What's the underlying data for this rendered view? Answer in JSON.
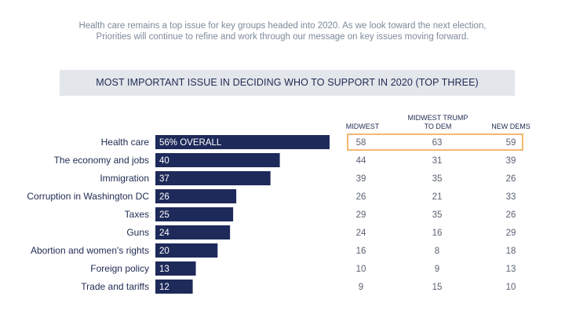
{
  "intro": {
    "line1": "Health care remains a top issue for key groups headed into 2020.  As we look toward the next election,",
    "line2": "Priorities will continue to refine and work through our message on key issues moving forward."
  },
  "colors": {
    "bar": "#1e2a5a",
    "highlight_border": "#f0a044",
    "title_band": "#e3e6eb",
    "text": "#1f2a52",
    "table_text": "#5a6272"
  },
  "chart_data": {
    "type": "bar",
    "orientation": "horizontal",
    "title": "MOST IMPORTANT ISSUE IN DECIDING WHO TO SUPPORT IN 2020 (TOP THREE)",
    "categories": [
      "Health care",
      "The economy and jobs",
      "Immigration",
      "Corruption in Washington DC",
      "Taxes",
      "Guns",
      "Abortion and women's rights",
      "Foreign policy",
      "Trade and tariffs"
    ],
    "values": [
      56,
      40,
      37,
      26,
      25,
      24,
      20,
      13,
      12
    ],
    "bar_labels": [
      "56% OVERALL",
      "40",
      "37",
      "26",
      "25",
      "24",
      "20",
      "13",
      "12"
    ],
    "xlim": [
      0,
      56
    ],
    "table": {
      "columns": [
        {
          "line1": "",
          "line2": "MIDWEST"
        },
        {
          "line1": "MIDWEST TRUMP",
          "line2": "TO DEM"
        },
        {
          "line1": "",
          "line2": "NEW DEMS"
        }
      ],
      "rows": [
        [
          58,
          63,
          59
        ],
        [
          44,
          31,
          39
        ],
        [
          39,
          35,
          26
        ],
        [
          26,
          21,
          33
        ],
        [
          29,
          35,
          26
        ],
        [
          24,
          16,
          29
        ],
        [
          16,
          8,
          18
        ],
        [
          10,
          9,
          13
        ],
        [
          9,
          15,
          10
        ]
      ],
      "highlighted_row": 0
    }
  }
}
